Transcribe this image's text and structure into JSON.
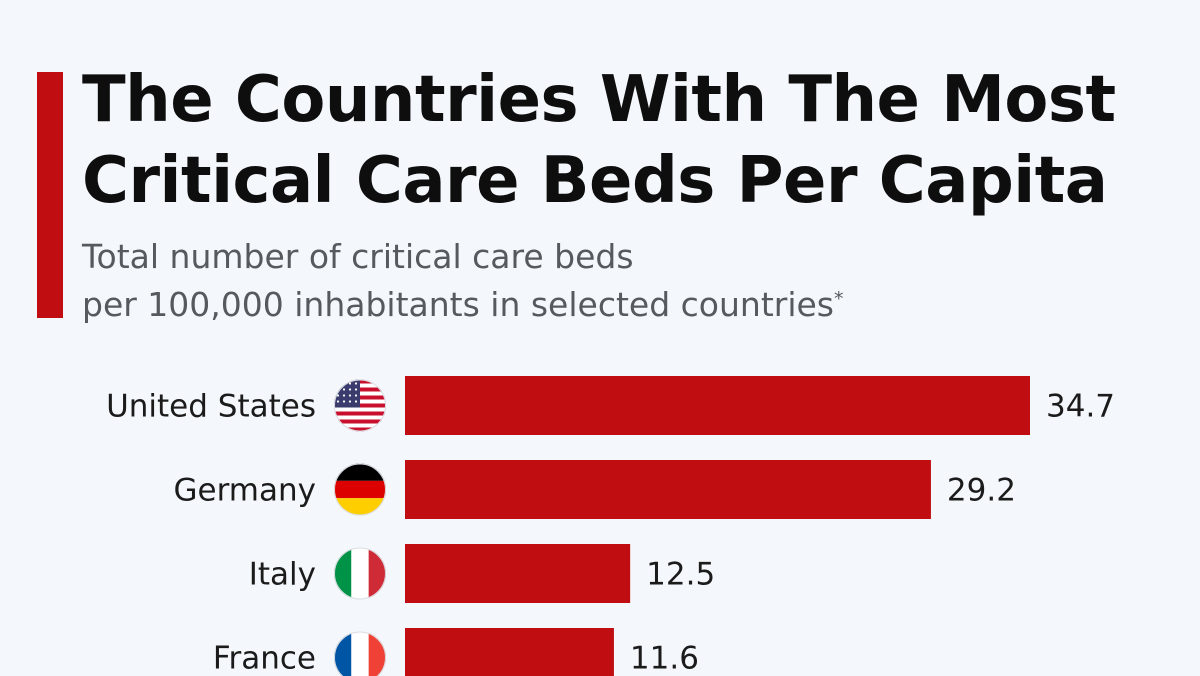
{
  "header": {
    "title": "The Countries With The Most Critical Care Beds Per Capita",
    "subtitle_line1": "Total number of critical care beds",
    "subtitle_line2": "per 100,000 inhabitants in selected countries",
    "subtitle_footnote_mark": "*"
  },
  "colors": {
    "accent": "#c00d12",
    "bar": "#c00d12",
    "background": "#f4f7fb"
  },
  "chart_data": {
    "type": "bar",
    "orientation": "horizontal",
    "categories": [
      "United States",
      "Germany",
      "Italy",
      "France"
    ],
    "values": [
      34.7,
      29.2,
      12.5,
      11.6
    ],
    "value_labels": [
      "34.7",
      "29.2",
      "12.5",
      "11.6"
    ],
    "flags": [
      "us-flag-icon",
      "germany-flag-icon",
      "italy-flag-icon",
      "france-flag-icon"
    ],
    "xlim": [
      0,
      34.7
    ],
    "grid": false,
    "legend": "none"
  }
}
